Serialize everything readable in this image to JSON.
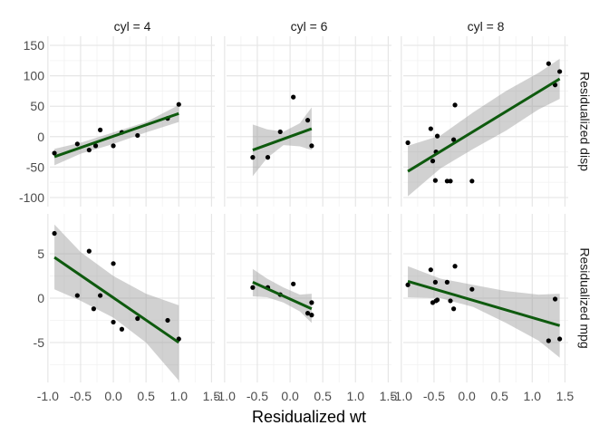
{
  "chart_data": {
    "type": "scatter",
    "xlabel": "Residualized wt",
    "x_ticks": [
      -1.0,
      -0.5,
      0.0,
      0.5,
      1.0,
      1.5
    ],
    "x_tick_labels": [
      "-1.0",
      "-0.5",
      "0.0",
      "0.5",
      "1.0",
      "1.5"
    ],
    "xlim": [
      -0.97,
      1.55
    ],
    "grid": true,
    "colors": {
      "fit_line": "#0e5a0e",
      "band": "#999999",
      "points": "#000000",
      "grid_major": "#e6e6e6",
      "grid_minor": "#f2f2f2"
    },
    "columns": [
      "cyl = 4",
      "cyl = 6",
      "cyl = 8"
    ],
    "rows": [
      {
        "label": "Residualized disp",
        "ylim": [
          -115,
          165
        ],
        "y_ticks": [
          -100,
          -50,
          0,
          50,
          100,
          150
        ],
        "y_tick_labels": [
          "-100",
          "-50",
          "0",
          "50",
          "100",
          "150"
        ],
        "panels": [
          {
            "points": [
              [
                -0.9,
                -27
              ],
              [
                -0.55,
                -12
              ],
              [
                -0.37,
                -22
              ],
              [
                -0.27,
                -15
              ],
              [
                -0.2,
                11
              ],
              [
                0.0,
                -15
              ],
              [
                0.13,
                7
              ],
              [
                0.37,
                2
              ],
              [
                0.83,
                30
              ],
              [
                1.0,
                53
              ]
            ],
            "fit": {
              "x": [
                -0.9,
                1.0
              ],
              "y": [
                -33,
                38
              ]
            },
            "band": {
              "x": [
                -0.9,
                -0.5,
                0.0,
                0.5,
                1.0
              ],
              "upper": [
                -20,
                -10,
                7,
                24,
                52
              ],
              "lower": [
                -47,
                -28,
                -12,
                7,
                24
              ]
            }
          },
          {
            "points": [
              [
                -0.57,
                -34
              ],
              [
                -0.34,
                -34
              ],
              [
                -0.15,
                8
              ],
              [
                0.05,
                65
              ],
              [
                0.27,
                27
              ],
              [
                0.33,
                -15
              ]
            ],
            "fit": {
              "x": [
                -0.57,
                0.33
              ],
              "y": [
                -22,
                13
              ]
            },
            "band": {
              "x": [
                -0.57,
                -0.35,
                -0.1,
                0.15,
                0.33
              ],
              "upper": [
                20,
                12,
                8,
                22,
                48
              ],
              "lower": [
                -65,
                -35,
                -14,
                -16,
                -22
              ]
            }
          },
          {
            "points": [
              [
                -0.9,
                -10
              ],
              [
                -0.55,
                13
              ],
              [
                -0.52,
                -40
              ],
              [
                -0.48,
                -72
              ],
              [
                -0.47,
                -25
              ],
              [
                -0.45,
                1
              ],
              [
                -0.3,
                -73
              ],
              [
                -0.25,
                -73
              ],
              [
                -0.2,
                -5
              ],
              [
                -0.18,
                52
              ],
              [
                0.08,
                -73
              ],
              [
                1.25,
                120
              ],
              [
                1.35,
                85
              ],
              [
                1.42,
                107
              ]
            ],
            "fit": {
              "x": [
                -0.9,
                1.42
              ],
              "y": [
                -57,
                95
              ]
            },
            "band": {
              "x": [
                -0.9,
                -0.4,
                0.1,
                0.6,
                1.1,
                1.42
              ],
              "upper": [
                -15,
                2,
                40,
                75,
                105,
                128
              ],
              "lower": [
                -98,
                -52,
                -20,
                10,
                45,
                62
              ]
            }
          }
        ]
      },
      {
        "label": "Residualized mpg",
        "ylim": [
          -9.5,
          9.5
        ],
        "y_ticks": [
          -5,
          0,
          5
        ],
        "y_tick_labels": [
          "-5",
          "0",
          "5"
        ],
        "panels": [
          {
            "points": [
              [
                -0.9,
                7.3
              ],
              [
                -0.55,
                0.3
              ],
              [
                -0.37,
                5.3
              ],
              [
                -0.3,
                -1.2
              ],
              [
                -0.2,
                0.3
              ],
              [
                0.0,
                3.9
              ],
              [
                0.0,
                -2.7
              ],
              [
                0.13,
                -3.5
              ],
              [
                0.37,
                -2.3
              ],
              [
                0.83,
                -2.5
              ],
              [
                1.0,
                -4.6
              ]
            ],
            "fit": {
              "x": [
                -0.9,
                1.0
              ],
              "y": [
                4.6,
                -5.0
              ]
            },
            "band": {
              "x": [
                -0.9,
                -0.5,
                0.0,
                0.5,
                1.0
              ],
              "upper": [
                8.3,
                5.2,
                2.5,
                0.5,
                -0.8
              ],
              "lower": [
                1.0,
                -0.3,
                -2.2,
                -5.0,
                -9.3
              ]
            }
          },
          {
            "points": [
              [
                -0.57,
                1.2
              ],
              [
                -0.34,
                1.2
              ],
              [
                -0.15,
                0.4
              ],
              [
                0.05,
                1.6
              ],
              [
                0.27,
                -1.7
              ],
              [
                0.33,
                -0.5
              ],
              [
                0.33,
                -1.9
              ]
            ],
            "fit": {
              "x": [
                -0.57,
                0.33
              ],
              "y": [
                1.8,
                -1.2
              ]
            },
            "band": {
              "x": [
                -0.57,
                -0.35,
                -0.1,
                0.15,
                0.33
              ],
              "upper": [
                3.3,
                2.2,
                1.2,
                0.4,
                0.5
              ],
              "lower": [
                0.2,
                0.1,
                -0.5,
                -1.5,
                -2.8
              ]
            }
          },
          {
            "points": [
              [
                -0.9,
                1.5
              ],
              [
                -0.55,
                3.2
              ],
              [
                -0.52,
                -0.5
              ],
              [
                -0.48,
                1.8
              ],
              [
                -0.47,
                -0.3
              ],
              [
                -0.45,
                -0.2
              ],
              [
                -0.3,
                1.8
              ],
              [
                -0.25,
                -0.3
              ],
              [
                -0.2,
                -1.2
              ],
              [
                -0.18,
                3.6
              ],
              [
                0.08,
                1.0
              ],
              [
                1.25,
                -4.8
              ],
              [
                1.35,
                -0.1
              ],
              [
                1.42,
                -4.6
              ]
            ],
            "fit": {
              "x": [
                -0.9,
                1.42
              ],
              "y": [
                1.9,
                -3.1
              ]
            },
            "band": {
              "x": [
                -0.9,
                -0.4,
                0.1,
                0.6,
                1.1,
                1.42
              ],
              "upper": [
                3.6,
                2.2,
                1.5,
                0.8,
                0.4,
                0.5
              ],
              "lower": [
                0.1,
                0.0,
                -1.0,
                -2.8,
                -4.8,
                -6.7
              ]
            }
          }
        ]
      }
    ]
  }
}
